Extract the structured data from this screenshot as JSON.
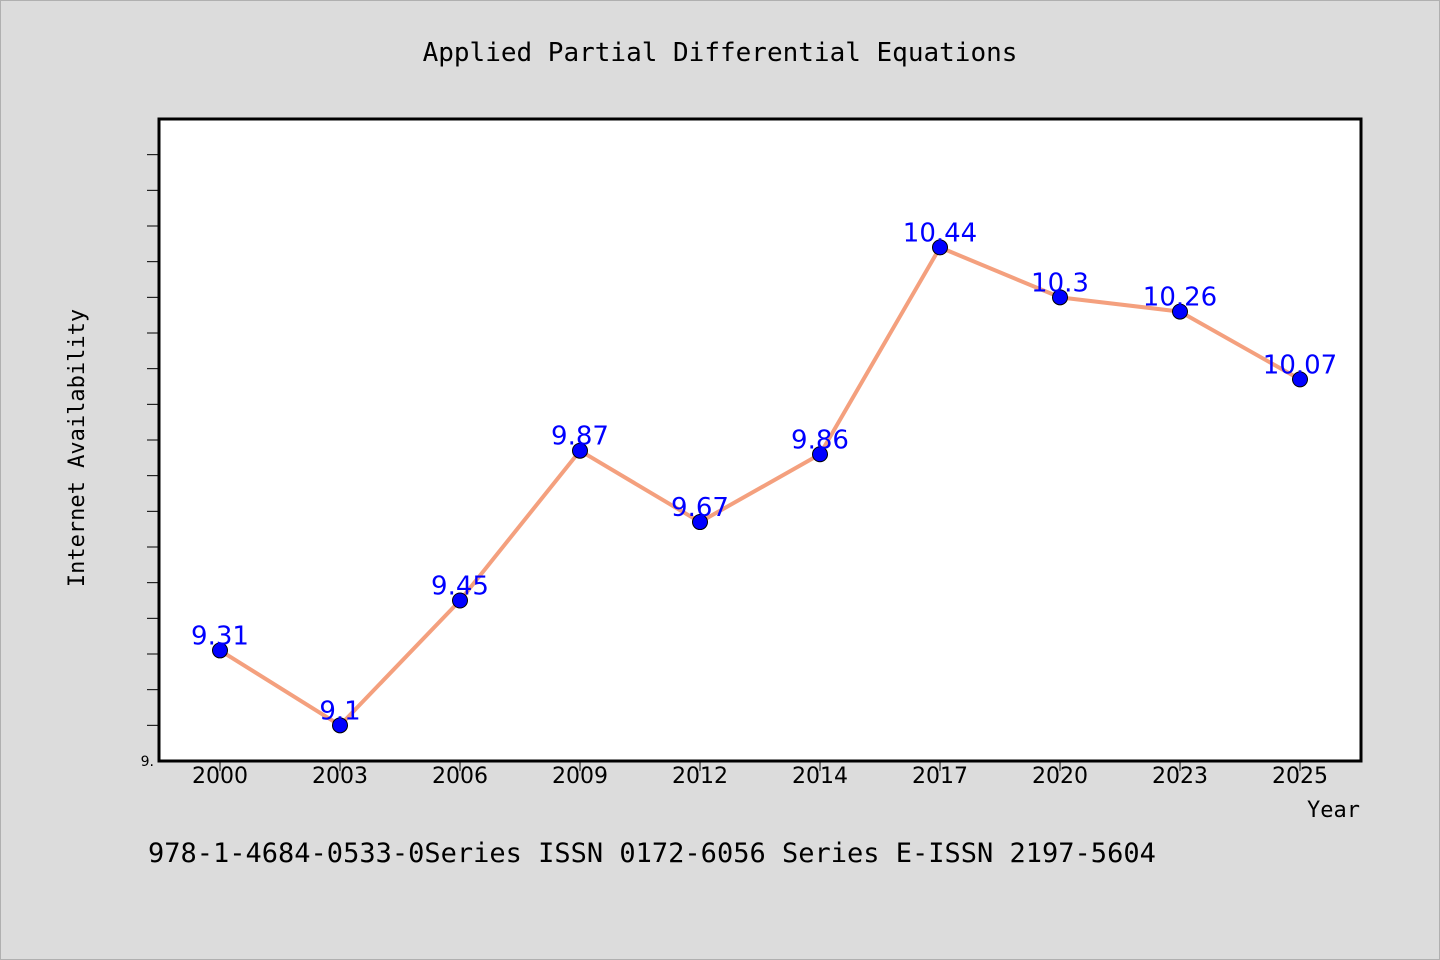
{
  "chart_data": {
    "type": "line",
    "title": "Applied Partial Differential Equations",
    "xlabel": "Year",
    "ylabel": "Internet Availability",
    "categories": [
      "2000",
      "2003",
      "2006",
      "2009",
      "2012",
      "2014",
      "2017",
      "2020",
      "2023",
      "2025"
    ],
    "series": [
      {
        "values": [
          9.31,
          9.1,
          9.45,
          9.87,
          9.67,
          9.86,
          10.44,
          10.3,
          10.26,
          10.07
        ]
      }
    ],
    "data_labels": [
      "9.31",
      "9.1",
      "9.45",
      "9.87",
      "9.67",
      "9.86",
      "10.44",
      "10.3",
      "10.26",
      "10.07"
    ],
    "y_tick_labels": [
      "9."
    ],
    "ylim": [
      9.0,
      10.8
    ],
    "grid": false,
    "colors": {
      "line": "#f4a07e",
      "marker": "#0000ff",
      "data_label": "#0000ff",
      "plot_background": "#ffffff",
      "figure_background": "#dcdcdc"
    }
  },
  "footer": {
    "text": "978-1-4684-0533-0Series ISSN 0172-6056 Series E-ISSN 2197-5604"
  }
}
